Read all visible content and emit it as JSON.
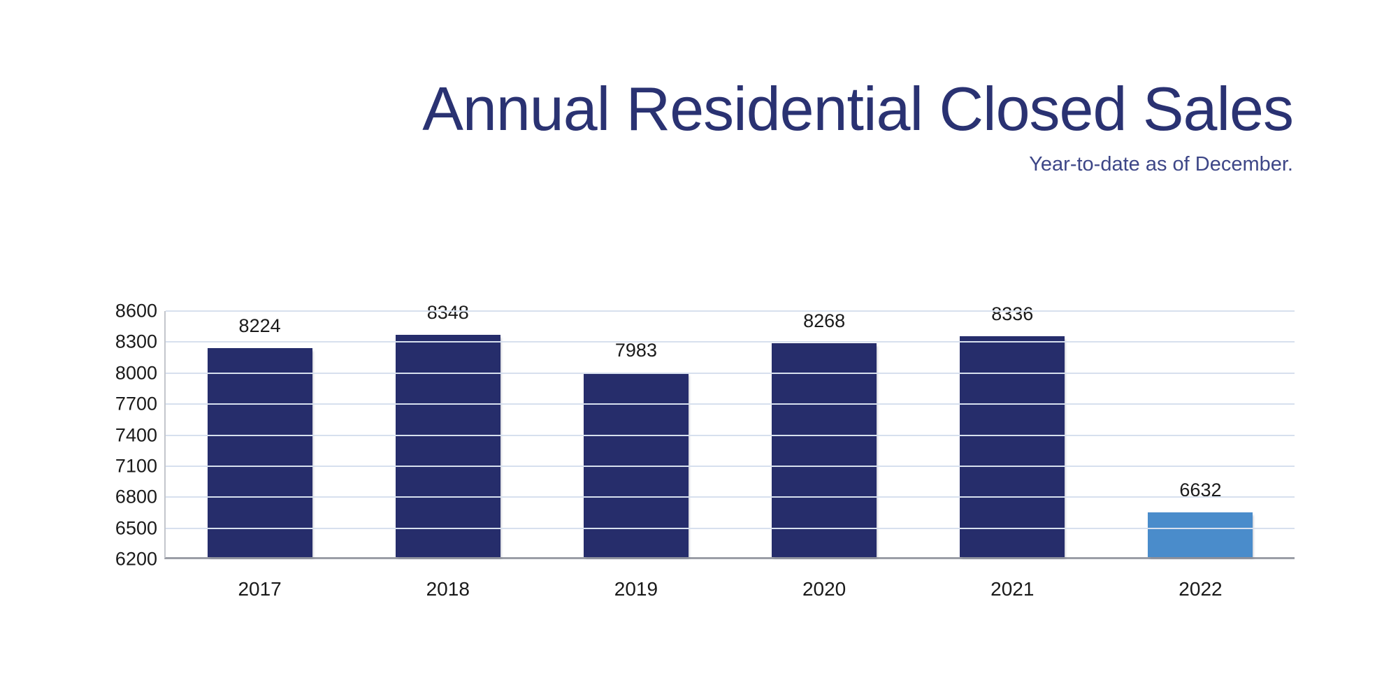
{
  "chart_data": {
    "type": "bar",
    "title": "Annual Residential Closed Sales",
    "subtitle": "Year-to-date as of December.",
    "categories": [
      "2017",
      "2018",
      "2019",
      "2020",
      "2021",
      "2022"
    ],
    "values": [
      8224,
      8348,
      7983,
      8268,
      8336,
      6632
    ],
    "data_labels": [
      8224,
      8348,
      7983,
      8268,
      8336,
      6632
    ],
    "ylim": [
      6200,
      8600
    ],
    "yticks": [
      8600,
      8300,
      8000,
      7700,
      7400,
      7100,
      6800,
      6500,
      6200
    ],
    "xlabel": "",
    "ylabel": "",
    "grid": "horizontal",
    "legend": "none",
    "highlight_index": 5,
    "colors": {
      "bar": "#262d6b",
      "highlight_bar": "#4a8ccb",
      "gridline": "#d7e0ee",
      "x_axis_line": "#9b9ea6",
      "y_axis_line": "#c3c6cc",
      "title_text": "#2a3272",
      "subtitle_text": "#3d4687",
      "label_text": "#1a1a1a"
    }
  }
}
